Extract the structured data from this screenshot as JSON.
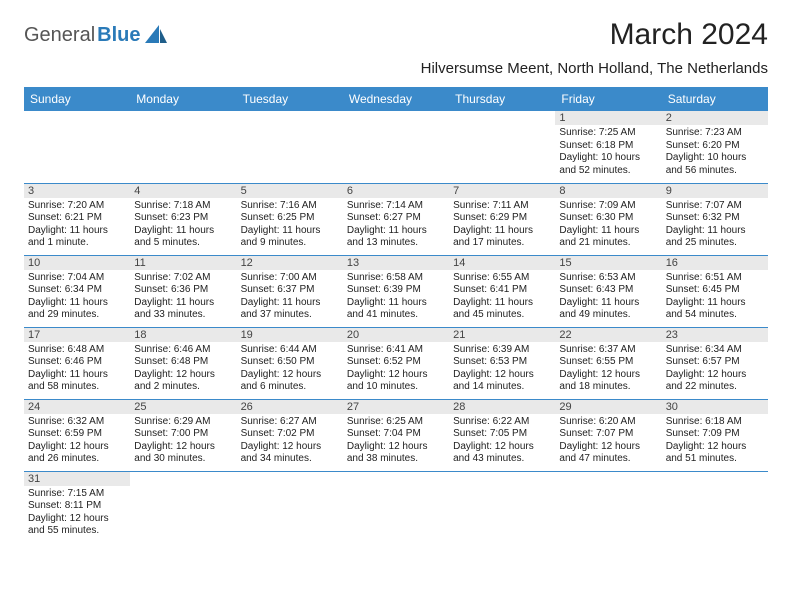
{
  "brand": {
    "part1": "General",
    "part2": "Blue",
    "accent_color": "#2a7ab8"
  },
  "title": "March 2024",
  "location": "Hilversumse Meent, North Holland, The Netherlands",
  "header_bg": "#3b8aca",
  "day_headers": [
    "Sunday",
    "Monday",
    "Tuesday",
    "Wednesday",
    "Thursday",
    "Friday",
    "Saturday"
  ],
  "weeks": [
    [
      null,
      null,
      null,
      null,
      null,
      {
        "n": "1",
        "sr": "7:25 AM",
        "ss": "6:18 PM",
        "dl": "10 hours and 52 minutes."
      },
      {
        "n": "2",
        "sr": "7:23 AM",
        "ss": "6:20 PM",
        "dl": "10 hours and 56 minutes."
      }
    ],
    [
      {
        "n": "3",
        "sr": "7:20 AM",
        "ss": "6:21 PM",
        "dl": "11 hours and 1 minute."
      },
      {
        "n": "4",
        "sr": "7:18 AM",
        "ss": "6:23 PM",
        "dl": "11 hours and 5 minutes."
      },
      {
        "n": "5",
        "sr": "7:16 AM",
        "ss": "6:25 PM",
        "dl": "11 hours and 9 minutes."
      },
      {
        "n": "6",
        "sr": "7:14 AM",
        "ss": "6:27 PM",
        "dl": "11 hours and 13 minutes."
      },
      {
        "n": "7",
        "sr": "7:11 AM",
        "ss": "6:29 PM",
        "dl": "11 hours and 17 minutes."
      },
      {
        "n": "8",
        "sr": "7:09 AM",
        "ss": "6:30 PM",
        "dl": "11 hours and 21 minutes."
      },
      {
        "n": "9",
        "sr": "7:07 AM",
        "ss": "6:32 PM",
        "dl": "11 hours and 25 minutes."
      }
    ],
    [
      {
        "n": "10",
        "sr": "7:04 AM",
        "ss": "6:34 PM",
        "dl": "11 hours and 29 minutes."
      },
      {
        "n": "11",
        "sr": "7:02 AM",
        "ss": "6:36 PM",
        "dl": "11 hours and 33 minutes."
      },
      {
        "n": "12",
        "sr": "7:00 AM",
        "ss": "6:37 PM",
        "dl": "11 hours and 37 minutes."
      },
      {
        "n": "13",
        "sr": "6:58 AM",
        "ss": "6:39 PM",
        "dl": "11 hours and 41 minutes."
      },
      {
        "n": "14",
        "sr": "6:55 AM",
        "ss": "6:41 PM",
        "dl": "11 hours and 45 minutes."
      },
      {
        "n": "15",
        "sr": "6:53 AM",
        "ss": "6:43 PM",
        "dl": "11 hours and 49 minutes."
      },
      {
        "n": "16",
        "sr": "6:51 AM",
        "ss": "6:45 PM",
        "dl": "11 hours and 54 minutes."
      }
    ],
    [
      {
        "n": "17",
        "sr": "6:48 AM",
        "ss": "6:46 PM",
        "dl": "11 hours and 58 minutes."
      },
      {
        "n": "18",
        "sr": "6:46 AM",
        "ss": "6:48 PM",
        "dl": "12 hours and 2 minutes."
      },
      {
        "n": "19",
        "sr": "6:44 AM",
        "ss": "6:50 PM",
        "dl": "12 hours and 6 minutes."
      },
      {
        "n": "20",
        "sr": "6:41 AM",
        "ss": "6:52 PM",
        "dl": "12 hours and 10 minutes."
      },
      {
        "n": "21",
        "sr": "6:39 AM",
        "ss": "6:53 PM",
        "dl": "12 hours and 14 minutes."
      },
      {
        "n": "22",
        "sr": "6:37 AM",
        "ss": "6:55 PM",
        "dl": "12 hours and 18 minutes."
      },
      {
        "n": "23",
        "sr": "6:34 AM",
        "ss": "6:57 PM",
        "dl": "12 hours and 22 minutes."
      }
    ],
    [
      {
        "n": "24",
        "sr": "6:32 AM",
        "ss": "6:59 PM",
        "dl": "12 hours and 26 minutes."
      },
      {
        "n": "25",
        "sr": "6:29 AM",
        "ss": "7:00 PM",
        "dl": "12 hours and 30 minutes."
      },
      {
        "n": "26",
        "sr": "6:27 AM",
        "ss": "7:02 PM",
        "dl": "12 hours and 34 minutes."
      },
      {
        "n": "27",
        "sr": "6:25 AM",
        "ss": "7:04 PM",
        "dl": "12 hours and 38 minutes."
      },
      {
        "n": "28",
        "sr": "6:22 AM",
        "ss": "7:05 PM",
        "dl": "12 hours and 43 minutes."
      },
      {
        "n": "29",
        "sr": "6:20 AM",
        "ss": "7:07 PM",
        "dl": "12 hours and 47 minutes."
      },
      {
        "n": "30",
        "sr": "6:18 AM",
        "ss": "7:09 PM",
        "dl": "12 hours and 51 minutes."
      }
    ],
    [
      {
        "n": "31",
        "sr": "7:15 AM",
        "ss": "8:11 PM",
        "dl": "12 hours and 55 minutes."
      },
      null,
      null,
      null,
      null,
      null,
      null
    ]
  ],
  "labels": {
    "sunrise": "Sunrise: ",
    "sunset": "Sunset: ",
    "daylight": "Daylight: "
  }
}
